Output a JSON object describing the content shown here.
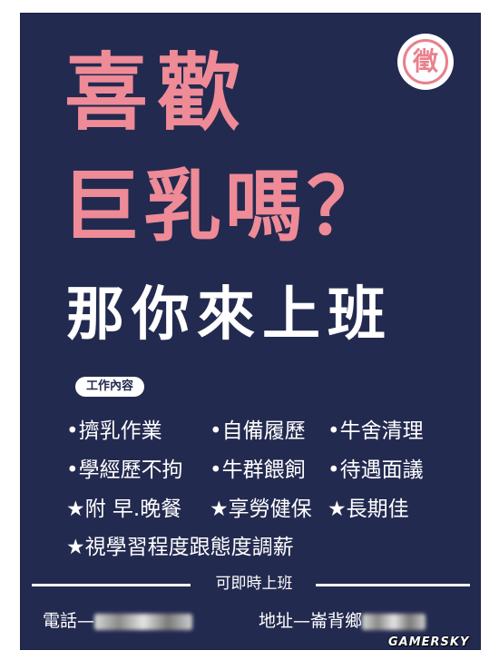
{
  "seal": {
    "char": "徵"
  },
  "headline": {
    "line1": "喜歡",
    "line2": "巨乳嗎？",
    "line3": "那你來上班"
  },
  "job_label": "工作內容",
  "rows": [
    [
      "•擠乳作業",
      "•自備履歷",
      "•牛舍清理"
    ],
    [
      "•學經歷不拘",
      "•牛群餵飼",
      "•待遇面議"
    ],
    [
      "★附 早.晚餐",
      "★享勞健保",
      "★長期佳"
    ],
    [
      "★視學習程度跟態度調薪"
    ]
  ],
  "immediate": "可即時上班",
  "contact": {
    "phone_label": "電話—",
    "address_label": "地址—崙背鄉"
  },
  "watermark": "GAMERSKY",
  "colors": {
    "background": "#232a4f",
    "headline_pink": "#ee8b97",
    "text": "#ffffff"
  }
}
